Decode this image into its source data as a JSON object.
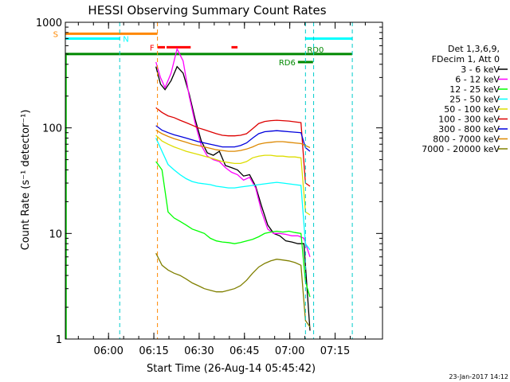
{
  "chart_data": {
    "type": "line",
    "title": "HESSI Observing Summary Count Rates",
    "xlabel": "Start Time (26-Aug-14 05:45:42)",
    "ylabel": "Count Rate (s⁻¹ detector⁻¹)",
    "yscale": "log",
    "ylim": [
      1,
      1000
    ],
    "xlim_minutes_after_0545": [
      0,
      105
    ],
    "x_ticks": [
      "06:00",
      "06:15",
      "06:30",
      "06:45",
      "07:00",
      "07:15"
    ],
    "y_ticks": [
      "1",
      "10",
      "100",
      "1000"
    ],
    "timestamp": "23-Jan-2017 14:12",
    "legend_header": [
      "Det 1,3,6,9,",
      "FDecim 1, Att 0"
    ],
    "series": [
      {
        "name": "3 - 6 keV",
        "color": "#000000",
        "x": [
          30.0,
          31.5,
          33.0,
          35.0,
          37.0,
          39.0,
          41.0,
          43.0,
          45.0,
          47.0,
          49.0,
          51.0,
          53.0,
          55.0,
          57.0,
          59.0,
          61.0,
          63.0,
          65.0,
          67.0,
          69.0,
          71.0,
          73.0,
          75.0,
          77.0,
          79.0,
          81.0
        ],
        "y": [
          380,
          260,
          230,
          280,
          380,
          330,
          210,
          120,
          75,
          58,
          55,
          60,
          44,
          42,
          40,
          35,
          36,
          28,
          18,
          12,
          10,
          9.5,
          8.5,
          8.3,
          8.0,
          8.0,
          1.2
        ]
      },
      {
        "name": "6 - 12 keV",
        "color": "#ff00ff",
        "x": [
          30.0,
          31.5,
          33.0,
          35.0,
          37.0,
          39.0,
          41.0,
          43.0,
          45.0,
          47.0,
          49.0,
          51.0,
          53.0,
          55.0,
          57.0,
          59.0,
          61.0,
          63.0,
          65.0,
          67.0,
          69.0,
          71.0,
          73.0,
          75.0,
          77.0,
          79.0,
          81.0
        ],
        "y": [
          420,
          300,
          240,
          330,
          560,
          430,
          200,
          110,
          68,
          54,
          50,
          48,
          42,
          38,
          36,
          32,
          34,
          27,
          16,
          11,
          10,
          10,
          9.8,
          9.5,
          9.5,
          9.0,
          6.0
        ]
      },
      {
        "name": "12 - 25 keV",
        "color": "#00ff00",
        "x": [
          30.0,
          32.0,
          34.0,
          36.0,
          38.0,
          40.0,
          42.0,
          44.0,
          46.0,
          48.0,
          50.0,
          52.0,
          54.0,
          56.0,
          58.0,
          60.0,
          62.0,
          64.0,
          66.0,
          68.0,
          70.0,
          72.0,
          74.0,
          76.0,
          78.0,
          79.5,
          81.0
        ],
        "y": [
          48,
          40,
          16,
          14,
          13,
          12,
          11,
          10.5,
          10,
          9,
          8.5,
          8.3,
          8.2,
          8.0,
          8.2,
          8.5,
          8.8,
          9.3,
          10,
          10.3,
          10.5,
          10.3,
          10.5,
          10.2,
          10,
          3.5,
          2.5
        ]
      },
      {
        "name": "25 - 50 keV",
        "color": "#00ffff",
        "x": [
          30.0,
          32.0,
          34.0,
          36.0,
          38.0,
          40.0,
          42.0,
          44.0,
          46.0,
          48.0,
          50.0,
          52.0,
          54.0,
          56.0,
          58.0,
          60.0,
          62.0,
          64.0,
          66.0,
          68.0,
          70.0,
          72.0,
          74.0,
          76.0,
          78.0,
          79.5,
          81.0
        ],
        "y": [
          80,
          60,
          45,
          40,
          36,
          33,
          31,
          30,
          29.5,
          29,
          28,
          27.5,
          27,
          27,
          27.5,
          28,
          28.5,
          29,
          29.5,
          30,
          30.5,
          30,
          29.5,
          29,
          28.5,
          8.0,
          7.0
        ]
      },
      {
        "name": "50 - 100 keV",
        "color": "#dddd00",
        "x": [
          30.0,
          32.0,
          34.0,
          36.0,
          38.0,
          40.0,
          42.0,
          44.0,
          46.0,
          48.0,
          50.0,
          52.0,
          54.0,
          56.0,
          58.0,
          60.0,
          62.0,
          64.0,
          66.0,
          68.0,
          70.0,
          72.0,
          74.0,
          76.0,
          78.0,
          79.5,
          81.0
        ],
        "y": [
          85,
          75,
          70,
          66,
          63,
          60,
          58,
          56,
          54,
          52,
          50,
          48,
          47,
          46,
          46,
          48,
          52,
          54,
          55,
          55,
          54,
          54,
          53,
          53,
          52,
          16,
          15
        ]
      },
      {
        "name": "100 - 300 keV",
        "color": "#dd0000",
        "x": [
          30.0,
          32.0,
          34.0,
          36.0,
          38.0,
          40.0,
          42.0,
          44.0,
          46.0,
          48.0,
          50.0,
          52.0,
          54.0,
          56.0,
          58.0,
          60.0,
          62.0,
          64.0,
          66.0,
          68.0,
          70.0,
          72.0,
          74.0,
          76.0,
          78.0,
          79.5,
          81.0
        ],
        "y": [
          155,
          140,
          130,
          125,
          118,
          112,
          106,
          100,
          96,
          92,
          88,
          85,
          84,
          84,
          85,
          88,
          98,
          110,
          115,
          117,
          118,
          117,
          116,
          114,
          112,
          30,
          28
        ]
      },
      {
        "name": "300 - 800 keV",
        "color": "#0000dd",
        "x": [
          30.0,
          32.0,
          34.0,
          36.0,
          38.0,
          40.0,
          42.0,
          44.0,
          46.0,
          48.0,
          50.0,
          52.0,
          54.0,
          56.0,
          58.0,
          60.0,
          62.0,
          64.0,
          66.0,
          68.0,
          70.0,
          72.0,
          74.0,
          76.0,
          78.0,
          79.5,
          81.0
        ],
        "y": [
          105,
          95,
          90,
          86,
          83,
          80,
          77,
          74,
          72,
          70,
          68,
          66,
          66,
          66,
          68,
          72,
          80,
          88,
          92,
          93,
          94,
          93,
          92,
          91,
          90,
          65,
          60
        ]
      },
      {
        "name": "800 - 7000 keV",
        "color": "#dd8800",
        "x": [
          30.0,
          32.0,
          34.0,
          36.0,
          38.0,
          40.0,
          42.0,
          44.0,
          46.0,
          48.0,
          50.0,
          52.0,
          54.0,
          56.0,
          58.0,
          60.0,
          62.0,
          64.0,
          66.0,
          68.0,
          70.0,
          72.0,
          74.0,
          76.0,
          78.0,
          79.5,
          81.0
        ],
        "y": [
          95,
          88,
          83,
          79,
          76,
          73,
          70,
          68,
          66,
          64,
          62,
          61,
          60,
          60,
          61,
          63,
          66,
          70,
          72,
          73,
          74,
          74,
          73,
          72,
          71,
          68,
          65
        ]
      },
      {
        "name": "7000 - 20000 keV",
        "color": "#808000",
        "x": [
          30.0,
          32.0,
          34.0,
          36.0,
          38.0,
          40.0,
          42.0,
          44.0,
          46.0,
          48.0,
          50.0,
          52.0,
          54.0,
          56.0,
          58.0,
          60.0,
          62.0,
          64.0,
          66.0,
          68.0,
          70.0,
          72.0,
          74.0,
          76.0,
          78.0,
          79.5,
          81.0
        ],
        "y": [
          6.5,
          5.0,
          4.5,
          4.2,
          4.0,
          3.7,
          3.4,
          3.2,
          3.0,
          2.9,
          2.8,
          2.8,
          2.9,
          3.0,
          3.2,
          3.6,
          4.2,
          4.8,
          5.2,
          5.5,
          5.7,
          5.6,
          5.5,
          5.3,
          5.0,
          1.5,
          1.3
        ]
      }
    ],
    "flag_bars": [
      {
        "label": "S",
        "color": "#ff8800",
        "level": 780,
        "x0": 0,
        "x1": 30.5
      },
      {
        "label": "N",
        "color": "#00ffff",
        "level": 700,
        "x0": 0,
        "x1": 18
      },
      {
        "label": "N",
        "color": "#00ffff",
        "level": 700,
        "x0": 79.5,
        "x1": 95
      },
      {
        "label": "RD0",
        "color": "#008800",
        "level": 500,
        "x0": 0,
        "x1": 95
      },
      {
        "label": "F",
        "color": "#ff0000",
        "level": 580,
        "x0": 30.5,
        "x1": 33
      },
      {
        "label": "F",
        "color": "#ff0000",
        "level": 580,
        "x0": 33.5,
        "x1": 41.5
      },
      {
        "label": "F",
        "color": "#ff0000",
        "level": 580,
        "x0": 55,
        "x1": 57
      },
      {
        "label": "RD6",
        "color": "#008800",
        "level": 420,
        "x0": 77,
        "x1": 82
      }
    ],
    "vlines": [
      {
        "x": 18,
        "color": "#00cccc"
      },
      {
        "x": 30.5,
        "color": "#ff8800"
      },
      {
        "x": 79.5,
        "color": "#00cccc"
      },
      {
        "x": 82.2,
        "color": "#00cccc"
      },
      {
        "x": 95,
        "color": "#00cccc"
      }
    ]
  }
}
